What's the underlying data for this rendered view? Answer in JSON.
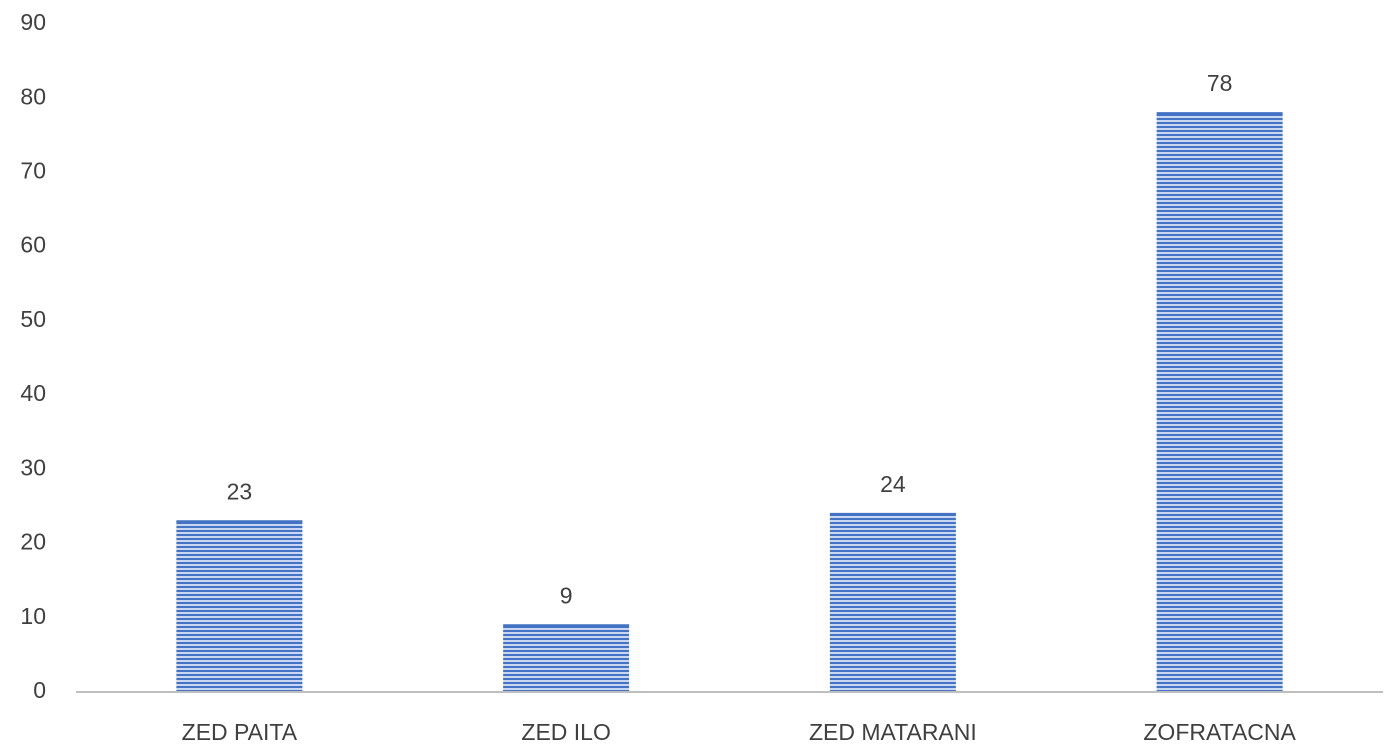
{
  "chart_data": {
    "type": "bar",
    "categories": [
      "ZED PAITA",
      "ZED ILO",
      "ZED MATARANI",
      "ZOFRATACNA"
    ],
    "values": [
      23,
      9,
      24,
      78
    ],
    "color": "#4472c4",
    "ylim": [
      0,
      90
    ],
    "yticks": [
      0,
      10,
      20,
      30,
      40,
      50,
      60,
      70,
      80,
      90
    ],
    "grid": false
  }
}
